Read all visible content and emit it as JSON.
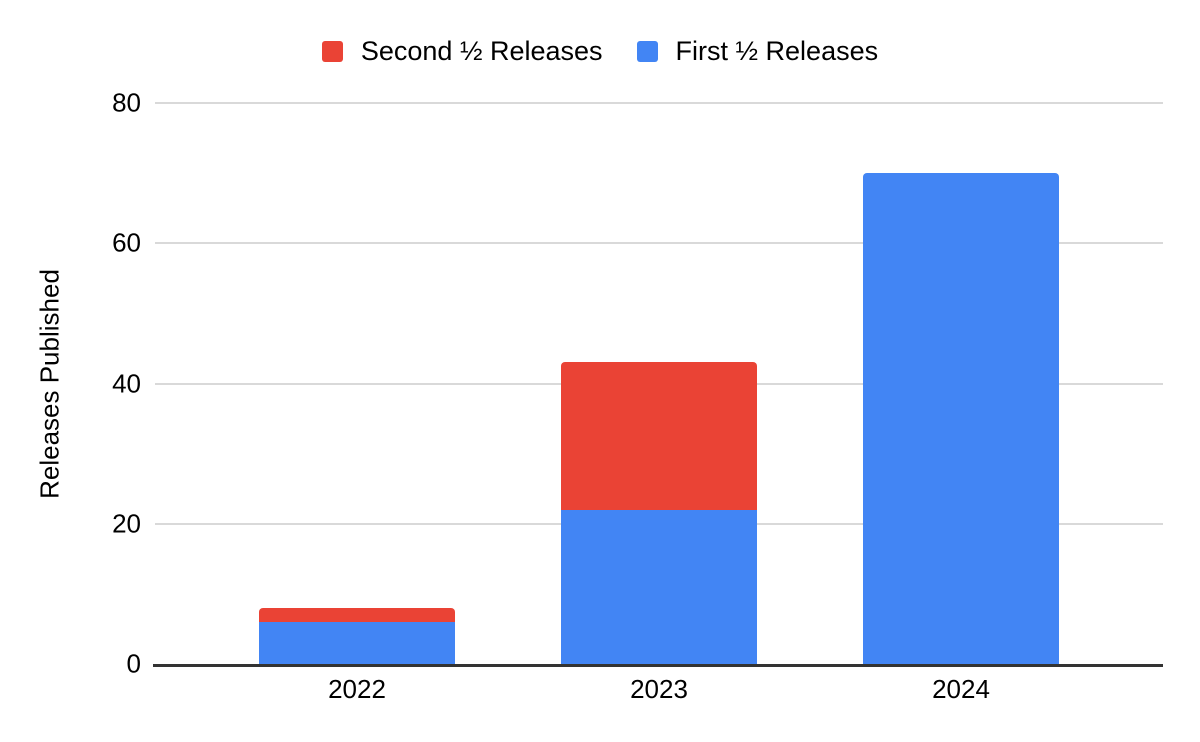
{
  "chart_data": {
    "type": "bar",
    "stacked": true,
    "title": "",
    "categories": [
      "2022",
      "2023",
      "2024"
    ],
    "series": [
      {
        "name": "First ½ Releases",
        "color": "#4285f4",
        "values": [
          6,
          22,
          70
        ]
      },
      {
        "name": "Second ½ Releases",
        "color": "#ea4335",
        "values": [
          2,
          21,
          0
        ]
      }
    ],
    "legend": {
      "position": "top",
      "entries": [
        {
          "label": "Second ½ Releases",
          "color": "#ea4335"
        },
        {
          "label": "First ½ Releases",
          "color": "#4285f4"
        }
      ]
    },
    "xlabel": "",
    "ylabel": "Releases Published",
    "ylim": [
      0,
      80
    ],
    "yticks": [
      0,
      20,
      40,
      60,
      80
    ],
    "grid": true,
    "colors": {
      "gridline": "#d9d9d9",
      "axis_line": "#333333",
      "text": "#000000",
      "background": "#ffffff"
    }
  }
}
